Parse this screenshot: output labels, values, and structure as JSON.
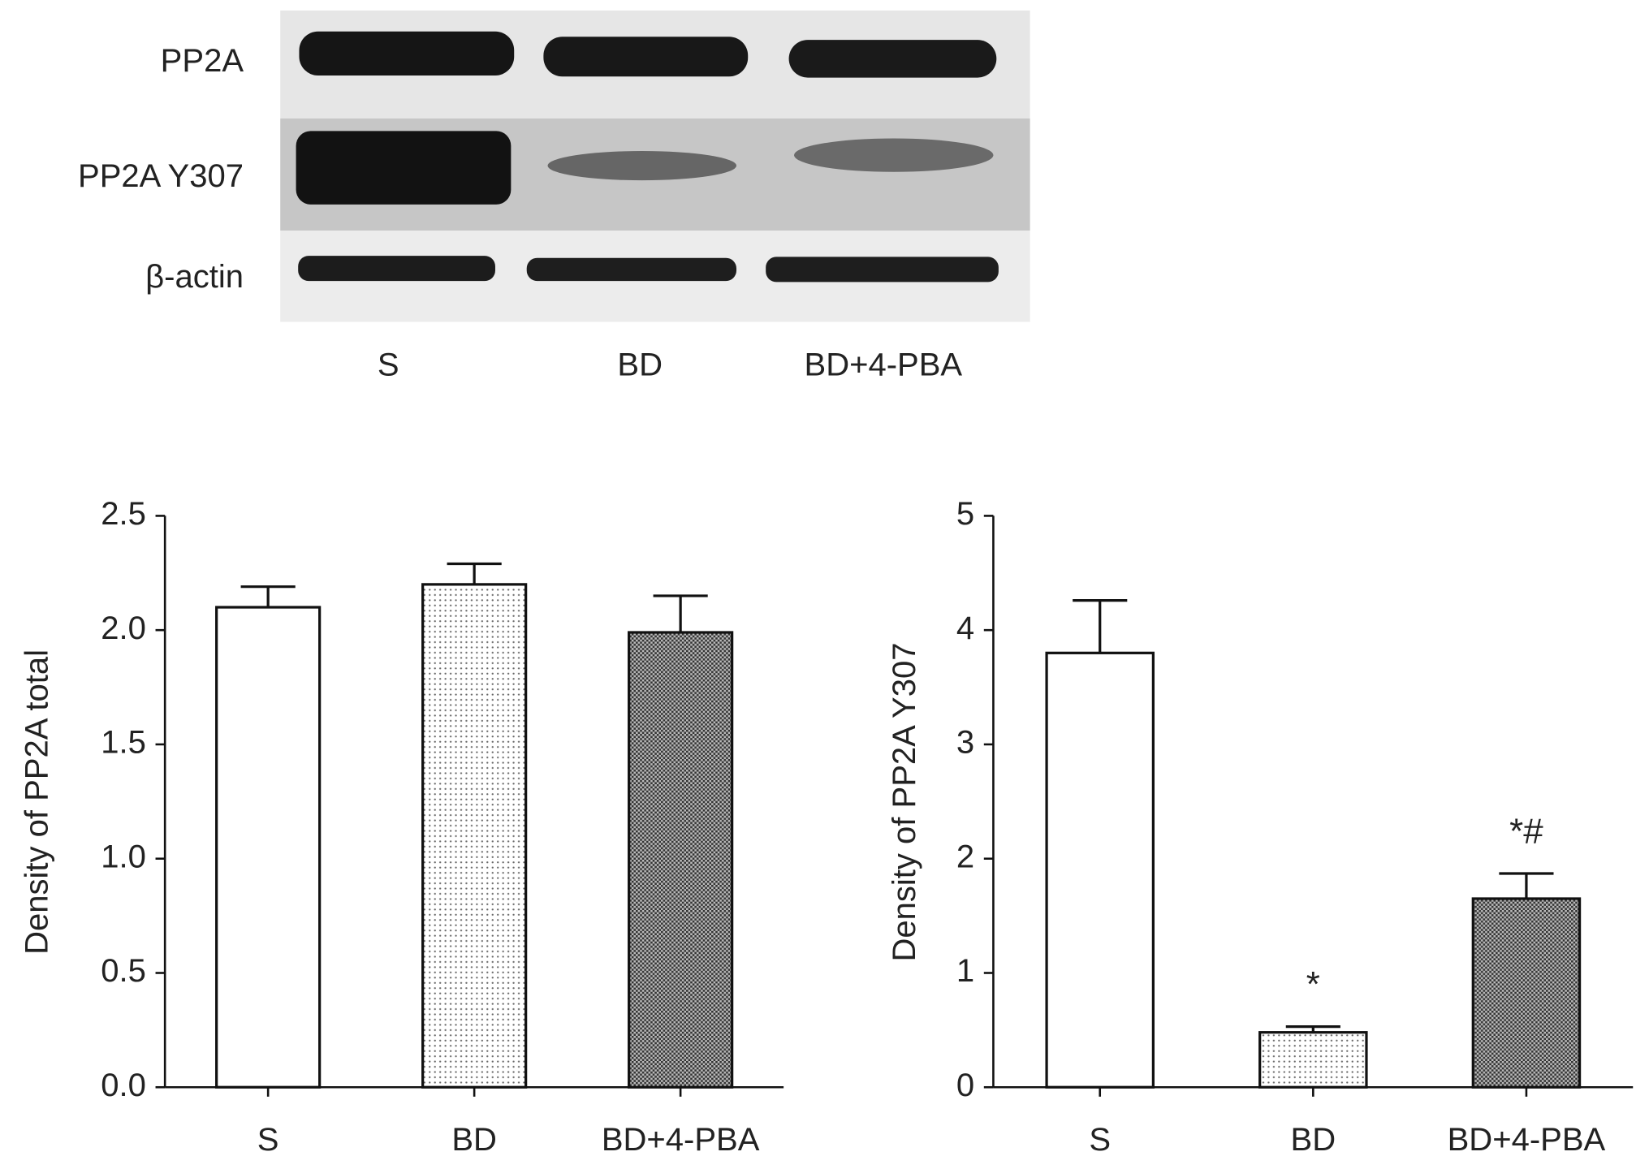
{
  "blot": {
    "rows": [
      "PP2A",
      "PP2A Y307",
      "β-actin"
    ],
    "lanes": [
      "S",
      "BD",
      "BD+4-PBA"
    ]
  },
  "chart_data": [
    {
      "type": "bar",
      "ylabel": "Density of PP2A total",
      "categories": [
        "S",
        "BD",
        "BD+4-PBA"
      ],
      "values": [
        2.1,
        2.2,
        1.99
      ],
      "errors": [
        0.09,
        0.09,
        0.16
      ],
      "patterns": [
        "solid",
        "dotted",
        "checkered"
      ],
      "ylim": [
        0,
        2.5
      ],
      "yticks": [
        {
          "value": 0,
          "label": "0.0"
        },
        0.5,
        {
          "value": 1,
          "label": "1.0"
        },
        1.5,
        {
          "value": 2,
          "label": "2.0"
        },
        2.5
      ]
    },
    {
      "type": "bar",
      "ylabel": "Density of PP2A Y307",
      "categories": [
        "S",
        "BD",
        "BD+4-PBA"
      ],
      "values": [
        3.8,
        0.48,
        1.65
      ],
      "errors": [
        0.46,
        0.05,
        0.22
      ],
      "patterns": [
        "solid",
        "dotted",
        "checkered"
      ],
      "ylim": [
        0,
        5
      ],
      "yticks": [
        0,
        1,
        2,
        3,
        4,
        5
      ],
      "annotations": [
        {
          "text": "*",
          "category": "BD"
        },
        {
          "text": "*#",
          "category": "BD+4-PBA"
        }
      ]
    }
  ]
}
